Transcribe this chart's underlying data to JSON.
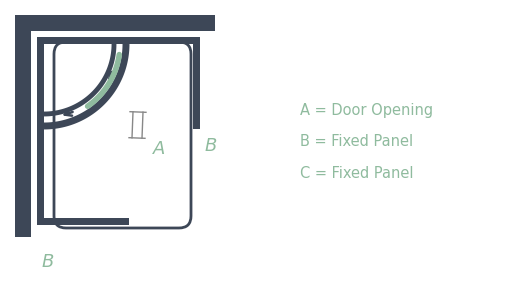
{
  "bg_color": "#ffffff",
  "wall_color": "#3d4757",
  "green_color": "#8fbb9e",
  "label_color": "#8fbb9e",
  "legend_color": "#8fbb9e",
  "dim_color": "#888888",
  "legend_lines": [
    "A = Door Opening",
    "B = Fixed Panel",
    "C = Fixed Panel"
  ],
  "legend_fontsize": 10.5
}
